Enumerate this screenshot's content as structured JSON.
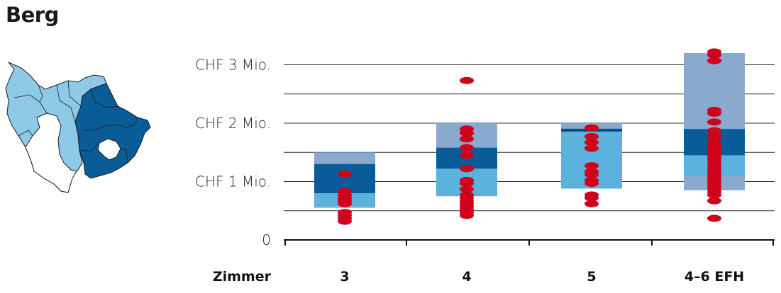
{
  "title": "Berg",
  "map": {
    "icon": "municipality-map-icon",
    "colors": {
      "light": "#8ec9e8",
      "dark": "#0a5c99",
      "white": "#ffffff",
      "outline": "#1a1a1a"
    }
  },
  "chart_data": {
    "type": "box-range-scatter",
    "title": "",
    "xlabel": "Zimmer",
    "ylabel": "",
    "ylim": [
      0,
      3.15
    ],
    "y_ticks": [
      {
        "value": 0,
        "label": "0"
      },
      {
        "value": 1,
        "label": "CHF 1 Mio."
      },
      {
        "value": 2,
        "label": "CHF 2 Mio."
      },
      {
        "value": 3,
        "label": "CHF 3 Mio."
      }
    ],
    "y_minor_ticks": [
      0.5,
      1.5,
      2.5
    ],
    "grid": true,
    "categories": [
      "3",
      "4",
      "5",
      "4–6 EFH"
    ],
    "colors": {
      "outer_range": "#8aa9cf",
      "middle_range": "#5ab2dd",
      "inner_range": "#0a5c99",
      "median": "#0a4a80",
      "points": "#d0021b"
    },
    "boxes": [
      {
        "category": "3",
        "outer": [
          0.55,
          1.5
        ],
        "middle": [
          0.58,
          0.8
        ],
        "inner": [
          0.8,
          1.3
        ],
        "median": null
      },
      {
        "category": "4",
        "outer": [
          0.75,
          2.0
        ],
        "middle": [
          0.75,
          1.22
        ],
        "inner": [
          1.22,
          1.58
        ],
        "median": null
      },
      {
        "category": "5",
        "outer": [
          0.88,
          2.0
        ],
        "middle": [
          0.88,
          1.87
        ],
        "inner": null,
        "median": 1.88
      },
      {
        "category": "4–6 EFH",
        "outer": [
          0.85,
          3.2
        ],
        "middle": [
          1.1,
          1.45
        ],
        "inner": [
          1.45,
          1.9
        ],
        "median": null
      }
    ],
    "points": [
      {
        "category": "3",
        "values": [
          0.32,
          0.37,
          0.42,
          0.47,
          0.62,
          0.67,
          0.72,
          0.77,
          0.83,
          1.13
        ]
      },
      {
        "category": "4",
        "values": [
          0.42,
          0.47,
          0.52,
          0.57,
          0.62,
          0.67,
          0.72,
          0.77,
          0.87,
          0.97,
          1.02,
          1.22,
          1.45,
          1.58,
          1.73,
          1.83,
          1.9,
          2.73
        ]
      },
      {
        "category": "5",
        "values": [
          0.62,
          0.72,
          0.77,
          0.97,
          1.02,
          1.12,
          1.17,
          1.27,
          1.57,
          1.67,
          1.77,
          1.92
        ]
      },
      {
        "category": "4–6 EFH",
        "values": [
          0.37,
          0.67,
          0.77,
          0.82,
          0.87,
          0.92,
          0.97,
          1.02,
          1.07,
          1.12,
          1.17,
          1.22,
          1.27,
          1.32,
          1.37,
          1.42,
          1.47,
          1.52,
          1.57,
          1.62,
          1.72,
          1.77,
          1.87,
          2.02,
          2.17,
          2.22,
          3.07,
          3.17,
          3.22
        ]
      }
    ]
  }
}
